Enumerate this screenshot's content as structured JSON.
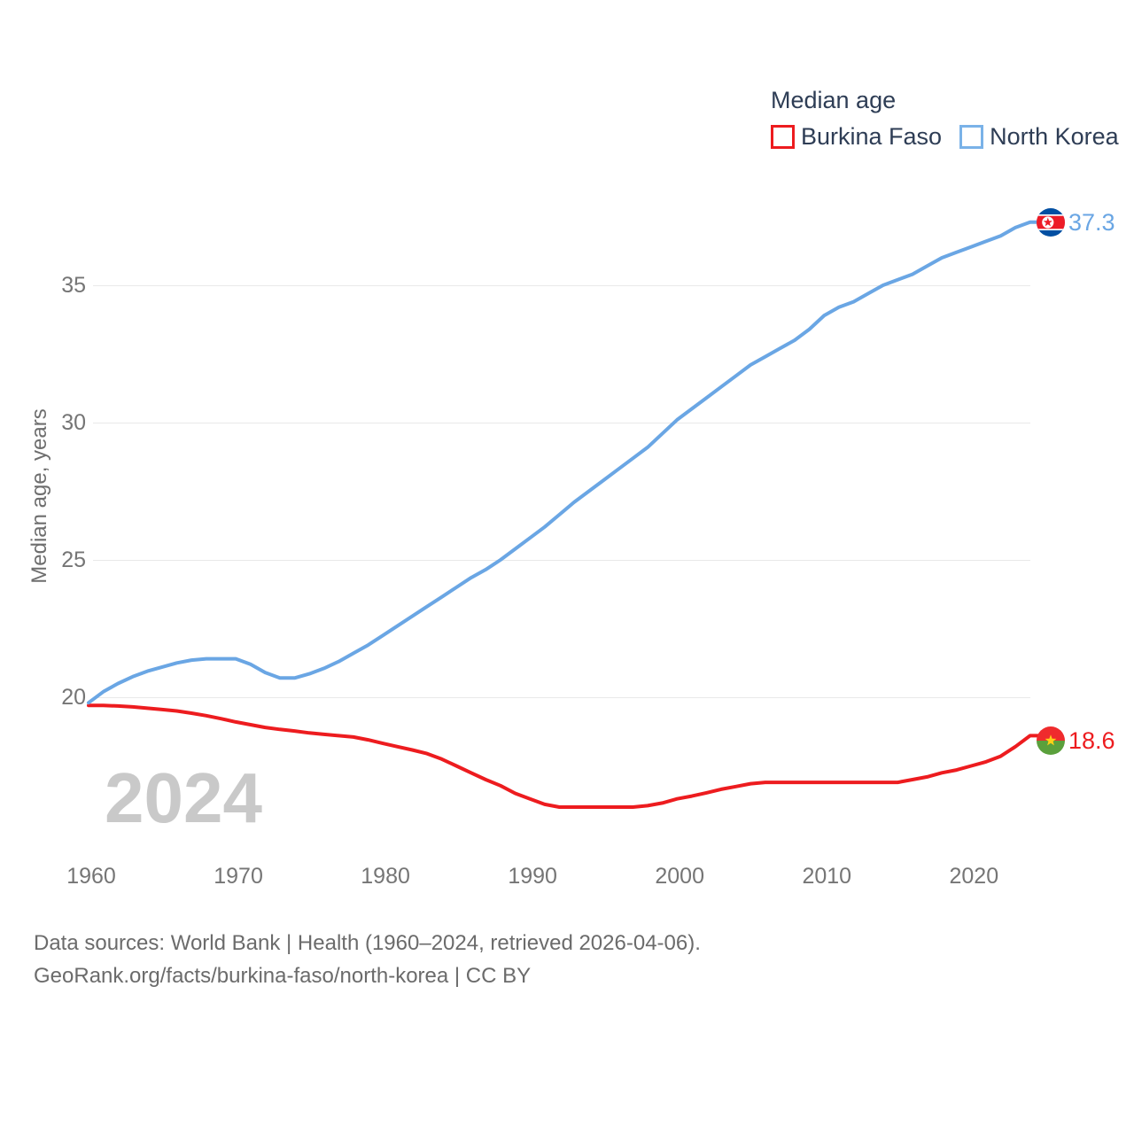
{
  "legend": {
    "title": "Median age",
    "items": [
      {
        "label": "Burkina Faso",
        "color": "#ed1c1f"
      },
      {
        "label": "North Korea",
        "color": "#7ab2e8"
      }
    ]
  },
  "axis": {
    "y_title": "Median age, years",
    "y_ticks": [
      20,
      25,
      30,
      35
    ],
    "x_ticks": [
      1960,
      1970,
      1980,
      1990,
      2000,
      2010,
      2020
    ]
  },
  "watermark": "2024",
  "end_labels": {
    "burkina_faso": {
      "value": "18.6",
      "color": "#ed1c1f"
    },
    "north_korea": {
      "value": "37.3",
      "color": "#6aa6e4"
    }
  },
  "flags": {
    "north_korea": {
      "name": "north-korea-flag",
      "blue": "#024FA2",
      "red": "#ED1C27",
      "white": "#ffffff"
    },
    "burkina_faso": {
      "name": "burkina-faso-flag",
      "red": "#EF2B2D",
      "green": "#5aa03c",
      "yellow": "#FCD116"
    }
  },
  "footer": {
    "line1": "Data sources: World Bank | Health (1960–2024, retrieved 2026-04-06).",
    "line2": "GeoRank.org/facts/burkina-faso/north-korea | CC BY"
  },
  "colors": {
    "burkina_faso_line": "#ed1c1f",
    "north_korea_line": "#6aa6e4",
    "gridline": "#e9e9e9",
    "tick_text": "#757575",
    "legend_text": "#2e3d55",
    "watermark": "#c9c9c9",
    "footer_text": "#6b6b6b"
  },
  "chart_data": {
    "type": "line",
    "title": "Median age",
    "xlabel": "",
    "ylabel": "Median age, years",
    "xlim": [
      1960,
      2024
    ],
    "ylim": [
      15.5,
      38
    ],
    "grid": "horizontal",
    "legend_position": "top-right",
    "x": [
      1960,
      1961,
      1962,
      1963,
      1964,
      1965,
      1966,
      1967,
      1968,
      1969,
      1970,
      1971,
      1972,
      1973,
      1974,
      1975,
      1976,
      1977,
      1978,
      1979,
      1980,
      1981,
      1982,
      1983,
      1984,
      1985,
      1986,
      1987,
      1988,
      1989,
      1990,
      1991,
      1992,
      1993,
      1994,
      1995,
      1996,
      1997,
      1998,
      1999,
      2000,
      2001,
      2002,
      2003,
      2004,
      2005,
      2006,
      2007,
      2008,
      2009,
      2010,
      2011,
      2012,
      2013,
      2014,
      2015,
      2016,
      2017,
      2018,
      2019,
      2020,
      2021,
      2022,
      2023,
      2024
    ],
    "series": [
      {
        "name": "Burkina Faso",
        "color": "#ed1c1f",
        "end_value": 18.6,
        "values": [
          19.7,
          19.7,
          19.68,
          19.65,
          19.6,
          19.55,
          19.5,
          19.42,
          19.33,
          19.22,
          19.1,
          19.0,
          18.9,
          18.83,
          18.77,
          18.7,
          18.65,
          18.6,
          18.55,
          18.45,
          18.32,
          18.2,
          18.08,
          17.95,
          17.75,
          17.5,
          17.25,
          17.0,
          16.78,
          16.5,
          16.3,
          16.1,
          16.0,
          16.0,
          16.0,
          16.0,
          16.0,
          16.0,
          16.05,
          16.15,
          16.3,
          16.4,
          16.52,
          16.65,
          16.75,
          16.85,
          16.9,
          16.9,
          16.9,
          16.9,
          16.9,
          16.9,
          16.9,
          16.9,
          16.9,
          16.9,
          17.0,
          17.1,
          17.25,
          17.35,
          17.5,
          17.65,
          17.85,
          18.2,
          18.6
        ]
      },
      {
        "name": "North Korea",
        "color": "#6aa6e4",
        "end_value": 37.3,
        "values": [
          19.8,
          20.2,
          20.5,
          20.75,
          20.95,
          21.1,
          21.25,
          21.35,
          21.4,
          21.4,
          21.4,
          21.2,
          20.9,
          20.7,
          20.7,
          20.85,
          21.05,
          21.3,
          21.6,
          21.9,
          22.25,
          22.6,
          22.95,
          23.3,
          23.65,
          24.0,
          24.35,
          24.65,
          25.0,
          25.4,
          25.8,
          26.2,
          26.65,
          27.1,
          27.5,
          27.9,
          28.3,
          28.7,
          29.1,
          29.6,
          30.1,
          30.5,
          30.9,
          31.3,
          31.7,
          32.1,
          32.4,
          32.7,
          33.0,
          33.4,
          33.9,
          34.2,
          34.4,
          34.7,
          35.0,
          35.2,
          35.4,
          35.7,
          36.0,
          36.2,
          36.4,
          36.6,
          36.8,
          37.1,
          37.3
        ]
      }
    ]
  }
}
